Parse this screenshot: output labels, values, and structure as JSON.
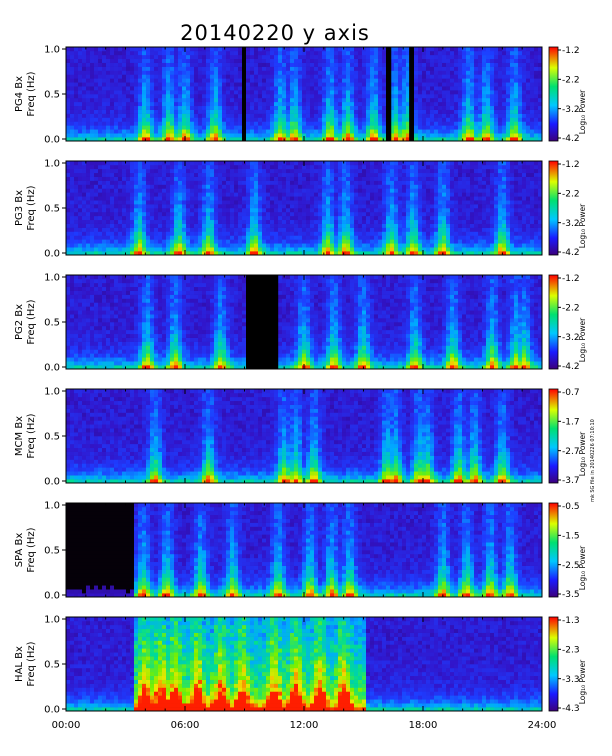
{
  "chart_data": {
    "type": "heatmap",
    "title": "20140220 y axis",
    "side_note": "mk SG file in 20140226 07:10:10",
    "x_ticks": [
      "00:00",
      "06:00",
      "12:00",
      "18:00",
      "24:00"
    ],
    "x_range_hours": [
      0,
      24
    ],
    "y_ticks": [
      "0.0",
      "0.5",
      "1.0"
    ],
    "y_range_hz": [
      0,
      1
    ],
    "colorbar_label": "Log₁₀ Power",
    "colormap": [
      "#000000",
      "#3c007c",
      "#2a32ff",
      "#00c8ff",
      "#00e070",
      "#dcff00",
      "#ff0000"
    ],
    "panels": [
      {
        "station": "PG4",
        "ylabel_line1": "PG4 Bx",
        "ylabel_line2": "Freq (Hz)",
        "colorbar_ticks": [
          "-1.2",
          "-2.2",
          "-3.2",
          "-4.2"
        ],
        "bursts_hours": [
          4.0,
          5.2,
          6.0,
          7.5,
          10.8,
          11.5,
          13.3,
          14.2,
          15.5,
          16.6,
          17.2,
          20.3,
          21.2,
          22.6
        ],
        "gaps_hours": [
          [
            8.9,
            9.05
          ],
          [
            16.2,
            16.4
          ],
          [
            17.3,
            17.45
          ]
        ],
        "quiet_before_hours": 0
      },
      {
        "station": "PG3",
        "ylabel_line1": "PG3 Bx",
        "ylabel_line2": "Freq (Hz)",
        "colorbar_ticks": [
          "-1.2",
          "-2.2",
          "-3.2",
          "-4.2"
        ],
        "bursts_hours": [
          3.7,
          5.7,
          7.2,
          9.5,
          13.2,
          14.1,
          16.4,
          17.5,
          19.0,
          22.0
        ],
        "gaps_hours": [],
        "quiet_before_hours": 0
      },
      {
        "station": "PG2",
        "ylabel_line1": "PG2 Bx",
        "ylabel_line2": "Freq (Hz)",
        "colorbar_ticks": [
          "-1.2",
          "-2.2",
          "-3.2",
          "-4.2"
        ],
        "bursts_hours": [
          4.1,
          5.5,
          7.8,
          12.0,
          13.5,
          15.0,
          17.6,
          19.5,
          21.5,
          22.7,
          23.1
        ],
        "gaps_hours": [
          [
            9.1,
            10.7
          ]
        ],
        "quiet_before_hours": 0
      },
      {
        "station": "MCM",
        "ylabel_line1": "MCM Bx",
        "ylabel_line2": "Freq (Hz)",
        "colorbar_ticks": [
          "-0.7",
          "-1.7",
          "-2.7",
          "-3.7"
        ],
        "bursts_hours": [
          4.5,
          7.2,
          11.0,
          11.6,
          12.5,
          16.2,
          16.6,
          17.8,
          18.2,
          19.8,
          20.6,
          22.0
        ],
        "gaps_hours": [],
        "quiet_before_hours": 0
      },
      {
        "station": "SPA",
        "ylabel_line1": "SPA Bx",
        "ylabel_line2": "Freq (Hz)",
        "colorbar_ticks": [
          "-0.5",
          "-1.5",
          "-2.5",
          "-3.5"
        ],
        "bursts_hours": [
          3.9,
          5.1,
          6.8,
          8.4,
          10.7,
          12.3,
          13.4,
          14.3,
          19.0,
          20.2,
          21.4,
          22.4
        ],
        "gaps_hours": [],
        "quiet_before_hours": 3.4
      },
      {
        "station": "HAL",
        "ylabel_line1": "HAL Bx",
        "ylabel_line2": "Freq (Hz)",
        "colorbar_ticks": [
          "-1.3",
          "-2.3",
          "-3.3",
          "-4.3"
        ],
        "bursts_hours": [
          4.0,
          4.8,
          5.5,
          6.6,
          7.8,
          8.9,
          10.5,
          11.6,
          12.8,
          14.0
        ],
        "gaps_hours": [],
        "quiet_before_hours": 0,
        "strong_interval_hours": [
          3.4,
          15.1
        ]
      }
    ]
  }
}
